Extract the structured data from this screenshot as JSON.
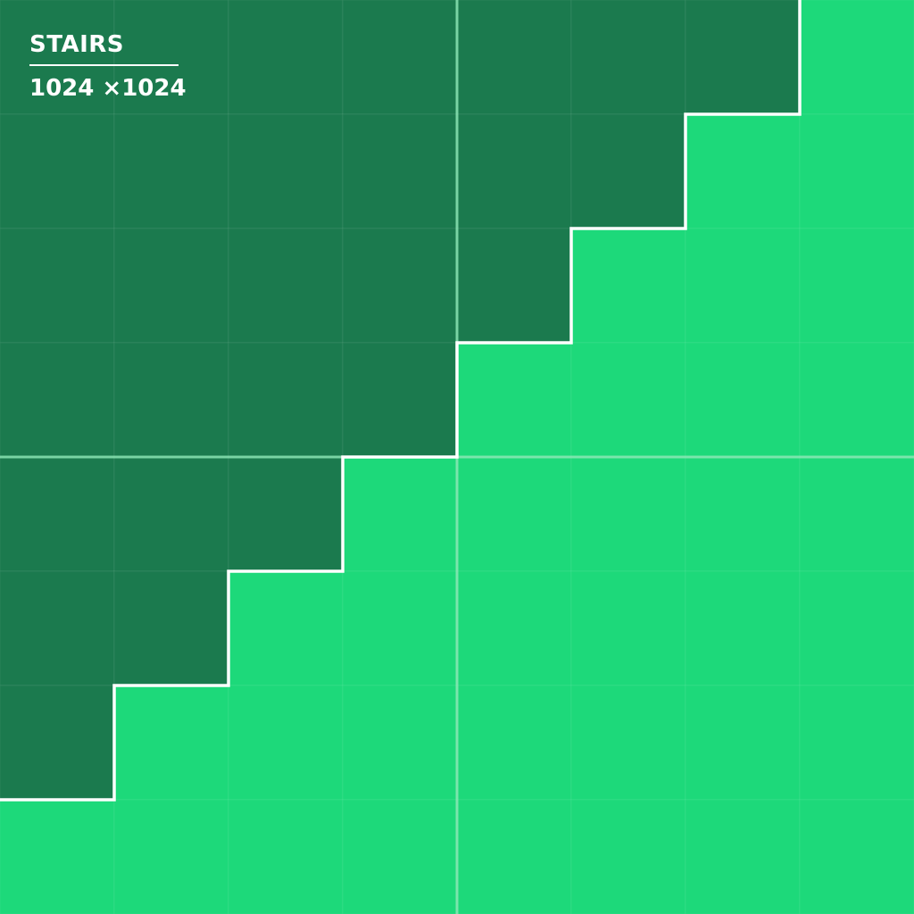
{
  "title": "STAIRS",
  "size_label": "1024 ×1024",
  "grid": {
    "rows": 8,
    "cols": 8,
    "steps": 7
  },
  "colors": {
    "dark": "#1b7a4e",
    "light": "#1dd97a",
    "stair_line": "#ffffff",
    "center_line": "#8fe8b8"
  }
}
